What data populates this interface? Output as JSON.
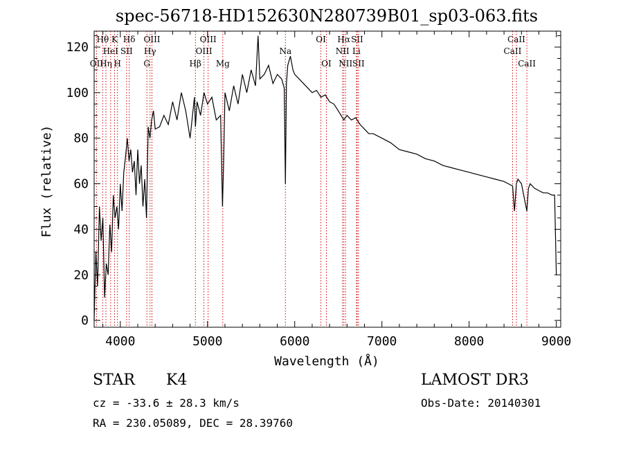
{
  "chart_data": {
    "type": "line",
    "title": "spec-56718-HD152630N280739B01_sp03-063.fits",
    "xlabel": "Wavelength (Å)",
    "ylabel": "Flux (relative)",
    "xlim": [
      3700,
      9050
    ],
    "ylim": [
      -3,
      127
    ],
    "x_ticks": [
      4000,
      5000,
      6000,
      7000,
      8000,
      9000
    ],
    "y_ticks": [
      0,
      20,
      40,
      60,
      80,
      100,
      120
    ],
    "grid": false,
    "series": [
      {
        "name": "flux",
        "x": [
          3700,
          3720,
          3740,
          3760,
          3780,
          3800,
          3820,
          3840,
          3860,
          3880,
          3900,
          3920,
          3940,
          3960,
          3980,
          4000,
          4020,
          4040,
          4060,
          4080,
          4100,
          4120,
          4140,
          4160,
          4180,
          4200,
          4220,
          4240,
          4260,
          4280,
          4300,
          4320,
          4340,
          4360,
          4380,
          4400,
          4450,
          4500,
          4550,
          4600,
          4650,
          4700,
          4750,
          4800,
          4850,
          4861,
          4880,
          4920,
          4960,
          5000,
          5050,
          5100,
          5150,
          5172,
          5185,
          5200,
          5250,
          5300,
          5350,
          5400,
          5450,
          5500,
          5550,
          5580,
          5600,
          5650,
          5700,
          5750,
          5800,
          5850,
          5880,
          5893,
          5905,
          5920,
          5950,
          5980,
          6000,
          6050,
          6100,
          6150,
          6200,
          6250,
          6300,
          6350,
          6400,
          6450,
          6500,
          6563,
          6600,
          6650,
          6700,
          6750,
          6800,
          6850,
          6900,
          7000,
          7100,
          7200,
          7300,
          7400,
          7500,
          7600,
          7700,
          7800,
          7900,
          8000,
          8100,
          8200,
          8300,
          8400,
          8450,
          8498,
          8520,
          8542,
          8560,
          8600,
          8662,
          8680,
          8700,
          8750,
          8800,
          8850,
          8900,
          8950,
          8980,
          9000
        ],
        "y": [
          0,
          30,
          15,
          50,
          35,
          45,
          10,
          25,
          20,
          42,
          30,
          55,
          45,
          50,
          40,
          60,
          48,
          65,
          72,
          80,
          70,
          75,
          65,
          70,
          55,
          75,
          60,
          68,
          50,
          62,
          45,
          85,
          80,
          88,
          92,
          84,
          85,
          90,
          86,
          96,
          88,
          100,
          92,
          80,
          98,
          85,
          96,
          90,
          100,
          95,
          98,
          88,
          90,
          50,
          70,
          100,
          92,
          103,
          95,
          108,
          100,
          110,
          103,
          125,
          106,
          108,
          112,
          104,
          108,
          106,
          102,
          60,
          104,
          112,
          116,
          110,
          108,
          106,
          104,
          102,
          100,
          101,
          98,
          99,
          96,
          95,
          92,
          88,
          90,
          88,
          89,
          86,
          84,
          82,
          82,
          80,
          78,
          75,
          74,
          73,
          71,
          70,
          68,
          67,
          66,
          65,
          64,
          63,
          62,
          61,
          60,
          59,
          48,
          60,
          62,
          60,
          48,
          58,
          60,
          58,
          57,
          56,
          56,
          55,
          55,
          20
        ]
      }
    ],
    "line_markers": [
      {
        "label": "Hθ",
        "wavelength": 3798,
        "row": 1
      },
      {
        "label": "OII",
        "wavelength": 3727,
        "row": 3
      },
      {
        "label": "Hη",
        "wavelength": 3835,
        "row": 3
      },
      {
        "label": "HeI",
        "wavelength": 3889,
        "row": 2
      },
      {
        "label": "K",
        "wavelength": 3934,
        "row": 1
      },
      {
        "label": "H",
        "wavelength": 3968,
        "row": 3
      },
      {
        "label": "SII",
        "wavelength": 4072,
        "row": 2
      },
      {
        "label": "Hδ",
        "wavelength": 4102,
        "row": 1
      },
      {
        "label": "OIII",
        "wavelength": 4363,
        "row": 1
      },
      {
        "label": "Hγ",
        "wavelength": 4341,
        "row": 2
      },
      {
        "label": "G",
        "wavelength": 4305,
        "row": 3
      },
      {
        "label": "Hβ",
        "wavelength": 4861,
        "row": 3
      },
      {
        "label": "OIII",
        "wavelength": 4959,
        "row": 2
      },
      {
        "label": "OIII",
        "wavelength": 5007,
        "row": 1
      },
      {
        "label": "Mg",
        "wavelength": 5175,
        "row": 3
      },
      {
        "label": "Na",
        "wavelength": 5893,
        "row": 2
      },
      {
        "label": "OI",
        "wavelength": 6300,
        "row": 1
      },
      {
        "label": "OI",
        "wavelength": 6363,
        "row": 3
      },
      {
        "label": "Hα",
        "wavelength": 6563,
        "row": 1
      },
      {
        "label": "NII",
        "wavelength": 6548,
        "row": 2
      },
      {
        "label": "NII",
        "wavelength": 6583,
        "row": 3
      },
      {
        "label": "SII",
        "wavelength": 6716,
        "row": 1
      },
      {
        "label": "Li",
        "wavelength": 6708,
        "row": 2
      },
      {
        "label": "SII",
        "wavelength": 6731,
        "row": 3
      },
      {
        "label": "CaII",
        "wavelength": 8542,
        "row": 1
      },
      {
        "label": "CaII",
        "wavelength": 8498,
        "row": 2
      },
      {
        "label": "CaII",
        "wavelength": 8662,
        "row": 3
      }
    ],
    "colors": {
      "spectrum": "#000000",
      "marker_line": "#cc0000",
      "axes": "#000000"
    }
  },
  "info": {
    "class": "STAR",
    "subclass": "K4",
    "survey": "LAMOST DR3",
    "cz": "cz = -33.6 ± 28.3 km/s",
    "obs_date": "Obs-Date: 20140301",
    "coords": "RA = 230.05089, DEC =  28.39760"
  }
}
